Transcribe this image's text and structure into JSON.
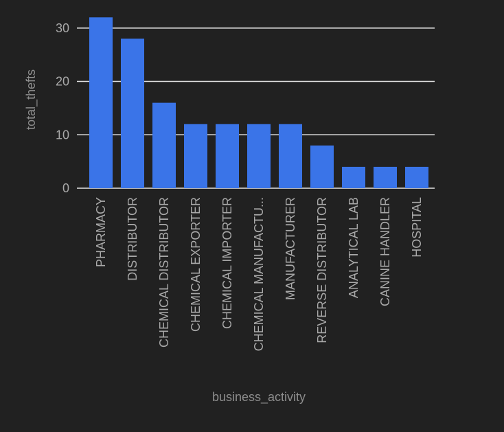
{
  "colors": {
    "background": "#212121",
    "bar": "#3a74e8",
    "grid": "#e6e6e6",
    "tick_label": "#a9a9a9",
    "axis_title": "#8d8d8d"
  },
  "chart_data": {
    "type": "bar",
    "categories": [
      "PHARMACY",
      "DISTRIBUTOR",
      "CHEMICAL DISTRIBUTOR",
      "CHEMICAL EXPORTER",
      "CHEMICAL IMPORTER",
      "CHEMICAL MANUFACTU...",
      "MANUFACTURER",
      "REVERSE DISTRIBUTOR",
      "ANALYTICAL LAB",
      "CANINE HANDLER",
      "HOSPITAL"
    ],
    "values": [
      32,
      28,
      16,
      12,
      12,
      12,
      12,
      8,
      4,
      4,
      4
    ],
    "xlabel": "business_activity",
    "ylabel": "total_thefts",
    "ylim": [
      0,
      33
    ],
    "yticks": [
      0,
      10,
      20,
      30
    ],
    "grid": true,
    "legend": "none"
  }
}
